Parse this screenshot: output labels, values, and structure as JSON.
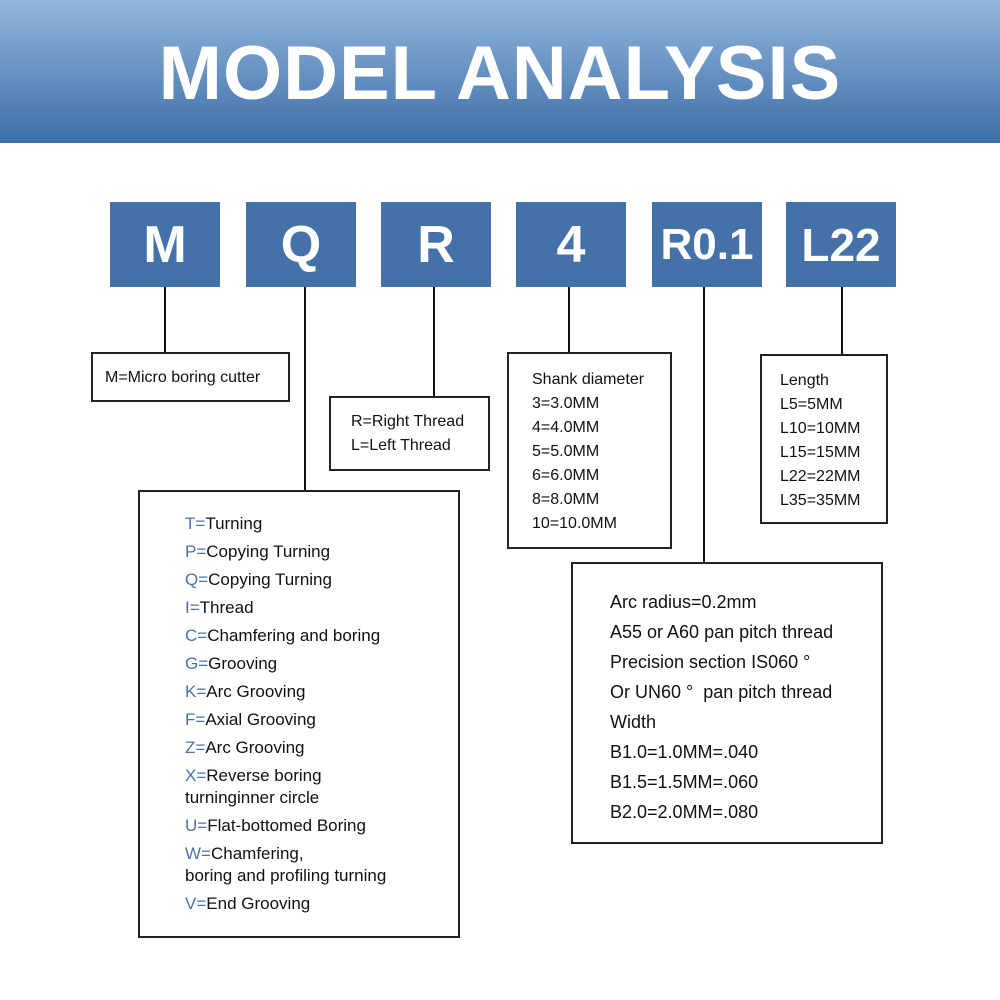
{
  "header": {
    "title": "MODEL ANALYSIS"
  },
  "codes": [
    "M",
    "Q",
    "R",
    "4",
    "R0.1",
    "L22"
  ],
  "colors": {
    "accent": "#4472a8",
    "key_letter": "#4a72aa"
  },
  "m_box": "M=Micro boring cutter",
  "r_box": [
    "R=Right Thread",
    "L=Left Thread"
  ],
  "shank_box": [
    "Shank diameter",
    "3=3.0MM",
    "4=4.0MM",
    "5=5.0MM",
    "6=6.0MM",
    "8=8.0MM",
    "10=10.0MM"
  ],
  "length_box": [
    "Length",
    "L5=5MM",
    "L10=10MM",
    "L15=15MM",
    "L22=22MM",
    "L35=35MM"
  ],
  "type_box": [
    {
      "k": "T=",
      "v": "Turning"
    },
    {
      "k": "P=",
      "v": "Copying Turning"
    },
    {
      "k": "Q=",
      "v": "Copying Turning"
    },
    {
      "k": "I=",
      "v": "Thread"
    },
    {
      "k": "C=",
      "v": "Chamfering and boring"
    },
    {
      "k": "G=",
      "v": "Grooving"
    },
    {
      "k": "K=",
      "v": "Arc Grooving"
    },
    {
      "k": "F=",
      "v": "Axial Grooving"
    },
    {
      "k": "Z=",
      "v": "Arc Grooving"
    },
    {
      "k": "X=",
      "v": "Reverse boring"
    },
    {
      "k": "",
      "v": "turninginner circle"
    },
    {
      "k": "U=",
      "v": "Flat-bottomed Boring"
    },
    {
      "k": "W=",
      "v": "Chamfering,"
    },
    {
      "k": "",
      "v": "boring and profiling turning"
    },
    {
      "k": "V=",
      "v": "End Grooving"
    }
  ],
  "arc_box": [
    "Arc radius=0.2mm",
    "A55 or A60 pan pitch thread",
    "Precision section IS060 °",
    "Or UN60 °  pan pitch thread",
    "Width",
    "B1.0=1.0MM=.040",
    "B1.5=1.5MM=.060",
    "B2.0=2.0MM=.080"
  ]
}
